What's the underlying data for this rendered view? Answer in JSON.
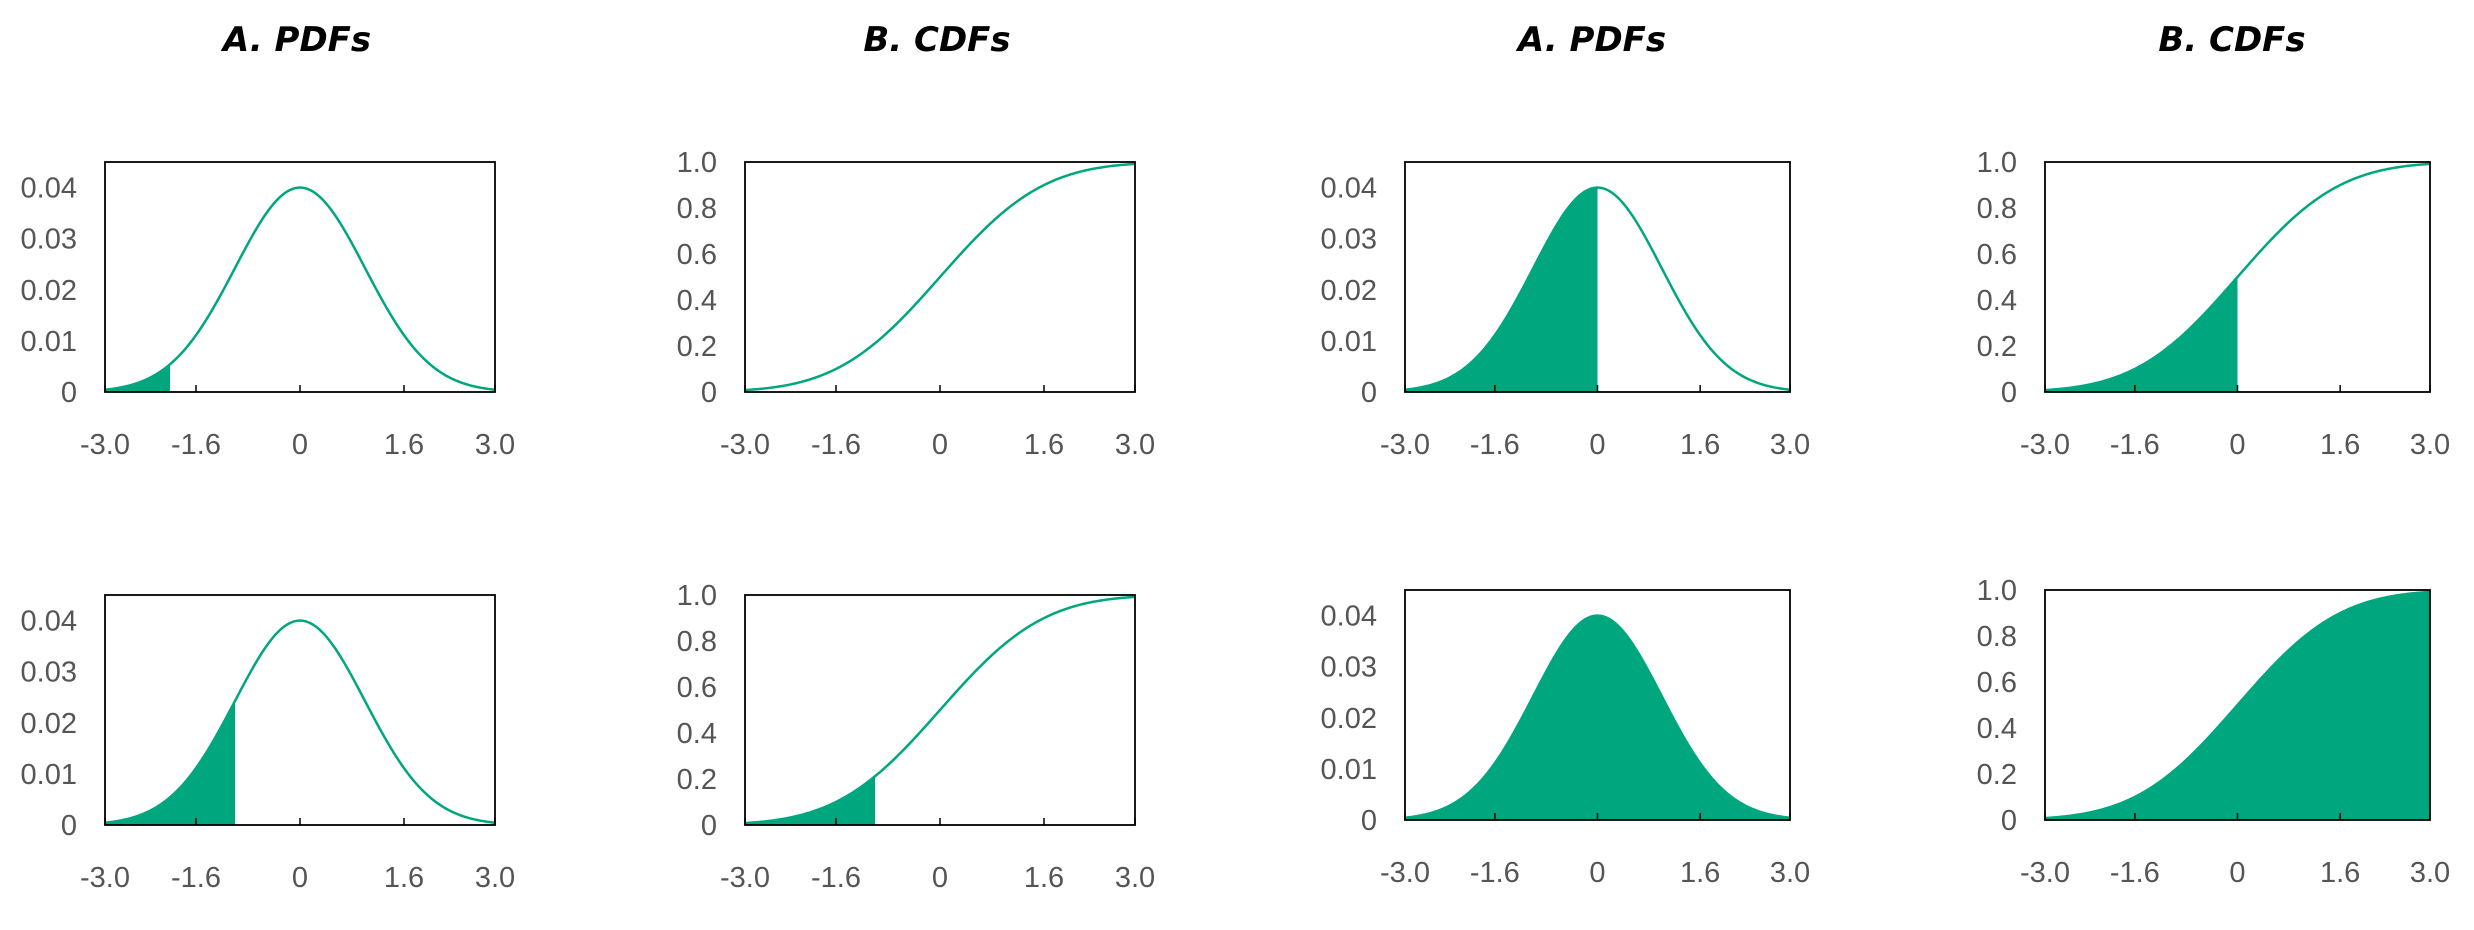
{
  "titles": {
    "pdf": "A. PDFs",
    "cdf": "B. CDFs"
  },
  "colors": {
    "curve": "#00a67e",
    "fill": "#00a67e",
    "frame": "#000000",
    "tick_text": "#555555"
  },
  "chart_data": [
    {
      "type": "area",
      "kind": "pdf",
      "title": "",
      "xlim": [
        -3.0,
        3.0
      ],
      "ylim": [
        0,
        0.045
      ],
      "x_ticks": [
        -3.0,
        -1.6,
        0,
        1.6,
        3.0
      ],
      "x_tick_labels": [
        "-3.0",
        "-1.6",
        "0",
        "1.6",
        "3.0"
      ],
      "y_ticks": [
        0,
        0.01,
        0.02,
        0.03,
        0.04
      ],
      "y_tick_labels": [
        "0",
        "0.01",
        "0.02",
        "0.03",
        "0.04"
      ],
      "shade_to_x": -2.0,
      "grid": false
    },
    {
      "type": "area",
      "kind": "cdf",
      "title": "",
      "xlim": [
        -3.0,
        3.0
      ],
      "ylim": [
        0,
        1.0
      ],
      "x_ticks": [
        -3.0,
        -1.6,
        0,
        1.6,
        3.0
      ],
      "x_tick_labels": [
        "-3.0",
        "-1.6",
        "0",
        "1.6",
        "3.0"
      ],
      "y_ticks": [
        0,
        0.2,
        0.4,
        0.6,
        0.8,
        1.0
      ],
      "y_tick_labels": [
        "0",
        "0.2",
        "0.4",
        "0.6",
        "0.8",
        "1.0"
      ],
      "shade_to_x": null,
      "grid": false
    },
    {
      "type": "area",
      "kind": "pdf",
      "title": "",
      "xlim": [
        -3.0,
        3.0
      ],
      "ylim": [
        0,
        0.045
      ],
      "x_ticks": [
        -3.0,
        -1.6,
        0,
        1.6,
        3.0
      ],
      "x_tick_labels": [
        "-3.0",
        "-1.6",
        "0",
        "1.6",
        "3.0"
      ],
      "y_ticks": [
        0,
        0.01,
        0.02,
        0.03,
        0.04
      ],
      "y_tick_labels": [
        "0",
        "0.01",
        "0.02",
        "0.03",
        "0.04"
      ],
      "shade_to_x": 0.0,
      "grid": false
    },
    {
      "type": "area",
      "kind": "cdf",
      "title": "",
      "xlim": [
        -3.0,
        3.0
      ],
      "ylim": [
        0,
        1.0
      ],
      "x_ticks": [
        -3.0,
        -1.6,
        0,
        1.6,
        3.0
      ],
      "x_tick_labels": [
        "-3.0",
        "-1.6",
        "0",
        "1.6",
        "3.0"
      ],
      "y_ticks": [
        0,
        0.2,
        0.4,
        0.6,
        0.8,
        1.0
      ],
      "y_tick_labels": [
        "0",
        "0.2",
        "0.4",
        "0.6",
        "0.8",
        "1.0"
      ],
      "shade_to_x": 0.0,
      "grid": false
    },
    {
      "type": "area",
      "kind": "pdf",
      "title": "",
      "xlim": [
        -3.0,
        3.0
      ],
      "ylim": [
        0,
        0.045
      ],
      "x_ticks": [
        -3.0,
        -1.6,
        0,
        1.6,
        3.0
      ],
      "x_tick_labels": [
        "-3.0",
        "-1.6",
        "0",
        "1.6",
        "3.0"
      ],
      "y_ticks": [
        0,
        0.01,
        0.02,
        0.03,
        0.04
      ],
      "y_tick_labels": [
        "0",
        "0.01",
        "0.02",
        "0.03",
        "0.04"
      ],
      "shade_to_x": -1.0,
      "grid": false
    },
    {
      "type": "area",
      "kind": "cdf",
      "title": "",
      "xlim": [
        -3.0,
        3.0
      ],
      "ylim": [
        0,
        1.0
      ],
      "x_ticks": [
        -3.0,
        -1.6,
        0,
        1.6,
        3.0
      ],
      "x_tick_labels": [
        "-3.0",
        "-1.6",
        "0",
        "1.6",
        "3.0"
      ],
      "y_ticks": [
        0,
        0.2,
        0.4,
        0.6,
        0.8,
        1.0
      ],
      "y_tick_labels": [
        "0",
        "0.2",
        "0.4",
        "0.6",
        "0.8",
        "1.0"
      ],
      "shade_to_x": -1.0,
      "grid": false
    },
    {
      "type": "area",
      "kind": "pdf",
      "title": "",
      "xlim": [
        -3.0,
        3.0
      ],
      "ylim": [
        0,
        0.045
      ],
      "x_ticks": [
        -3.0,
        -1.6,
        0,
        1.6,
        3.0
      ],
      "x_tick_labels": [
        "-3.0",
        "-1.6",
        "0",
        "1.6",
        "3.0"
      ],
      "y_ticks": [
        0,
        0.01,
        0.02,
        0.03,
        0.04
      ],
      "y_tick_labels": [
        "0",
        "0.01",
        "0.02",
        "0.03",
        "0.04"
      ],
      "shade_to_x": 3.0,
      "grid": false
    },
    {
      "type": "area",
      "kind": "cdf",
      "title": "",
      "xlim": [
        -3.0,
        3.0
      ],
      "ylim": [
        0,
        1.0
      ],
      "x_ticks": [
        -3.0,
        -1.6,
        0,
        1.6,
        3.0
      ],
      "x_tick_labels": [
        "-3.0",
        "-1.6",
        "0",
        "1.6",
        "3.0"
      ],
      "y_ticks": [
        0,
        0.2,
        0.4,
        0.6,
        0.8,
        1.0
      ],
      "y_tick_labels": [
        "0",
        "0.2",
        "0.4",
        "0.6",
        "0.8",
        "1.0"
      ],
      "shade_to_x": 3.0,
      "grid": false
    }
  ]
}
